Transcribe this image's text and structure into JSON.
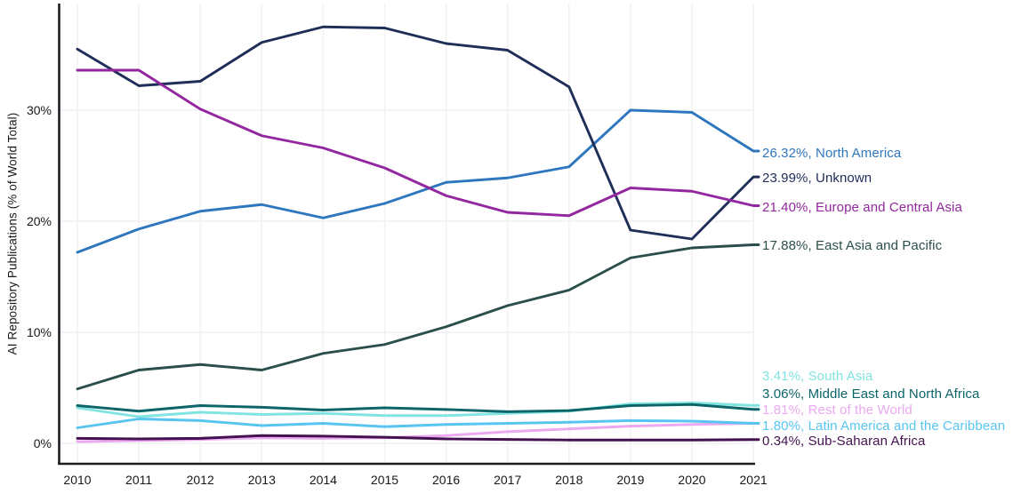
{
  "chart_data": {
    "type": "line",
    "title": "",
    "xlabel": "",
    "ylabel": "AI Repository Publications (% of World Total)",
    "x": [
      2010,
      2011,
      2012,
      2013,
      2014,
      2015,
      2016,
      2017,
      2018,
      2019,
      2020,
      2021
    ],
    "y_ticks": [
      {
        "value": 0,
        "label": "0%"
      },
      {
        "value": 10,
        "label": "10%"
      },
      {
        "value": 20,
        "label": "20%"
      },
      {
        "value": 30,
        "label": "30%"
      }
    ],
    "ylim": [
      -1.8,
      39.5
    ],
    "grid": true,
    "legend_position": "right-edge-labels",
    "series": [
      {
        "name": "North America",
        "end_label": "26.32%, North America",
        "color": "#2e76be",
        "values": [
          17.2,
          19.3,
          20.9,
          21.5,
          20.3,
          21.6,
          23.5,
          23.9,
          24.9,
          30.0,
          29.8,
          26.32
        ]
      },
      {
        "name": "Unknown",
        "end_label": "23.99%, Unknown",
        "color": "#1f2e58",
        "values": [
          35.5,
          32.2,
          32.6,
          36.1,
          37.5,
          37.4,
          36.0,
          35.4,
          32.1,
          19.2,
          18.4,
          23.99
        ]
      },
      {
        "name": "Europe and Central Asia",
        "end_label": "21.40%, Europe and Central Asia",
        "color": "#93279f",
        "values": [
          33.6,
          33.6,
          30.1,
          27.7,
          26.6,
          24.8,
          22.3,
          20.8,
          20.5,
          23.0,
          22.7,
          21.4
        ]
      },
      {
        "name": "East Asia and Pacific",
        "end_label": "17.88%, East Asia and Pacific",
        "color": "#2a4f4b",
        "values": [
          4.9,
          6.6,
          7.1,
          6.6,
          8.1,
          8.9,
          10.5,
          12.4,
          13.8,
          16.7,
          17.6,
          17.88
        ]
      },
      {
        "name": "South Asia",
        "end_label": "3.41%, South Asia",
        "color": "#82e4e0",
        "values": [
          3.2,
          2.4,
          2.8,
          2.6,
          2.7,
          2.5,
          2.5,
          2.7,
          2.9,
          3.55,
          3.65,
          3.41
        ]
      },
      {
        "name": "Middle East and North Africa",
        "end_label": "3.06%, Middle East and North Africa",
        "color": "#0c6568",
        "values": [
          3.4,
          2.9,
          3.4,
          3.25,
          3.0,
          3.2,
          3.05,
          2.85,
          2.95,
          3.4,
          3.5,
          3.06
        ]
      },
      {
        "name": "Rest of the World",
        "end_label": "1.81%, Rest of the World",
        "color": "#eba9f0",
        "values": [
          0.15,
          0.25,
          0.35,
          0.5,
          0.45,
          0.5,
          0.7,
          1.05,
          1.3,
          1.55,
          1.7,
          1.81
        ]
      },
      {
        "name": "Latin America and the Caribbean",
        "end_label": "1.80%, Latin America and the Caribbean",
        "color": "#58c5f0",
        "values": [
          1.4,
          2.2,
          2.05,
          1.6,
          1.8,
          1.5,
          1.7,
          1.8,
          1.9,
          2.05,
          2.0,
          1.8
        ]
      },
      {
        "name": "Sub-Saharan Africa",
        "end_label": "0.34%, Sub-Saharan Africa",
        "color": "#441150",
        "values": [
          0.45,
          0.4,
          0.45,
          0.7,
          0.65,
          0.55,
          0.4,
          0.35,
          0.3,
          0.3,
          0.3,
          0.34
        ]
      }
    ]
  }
}
